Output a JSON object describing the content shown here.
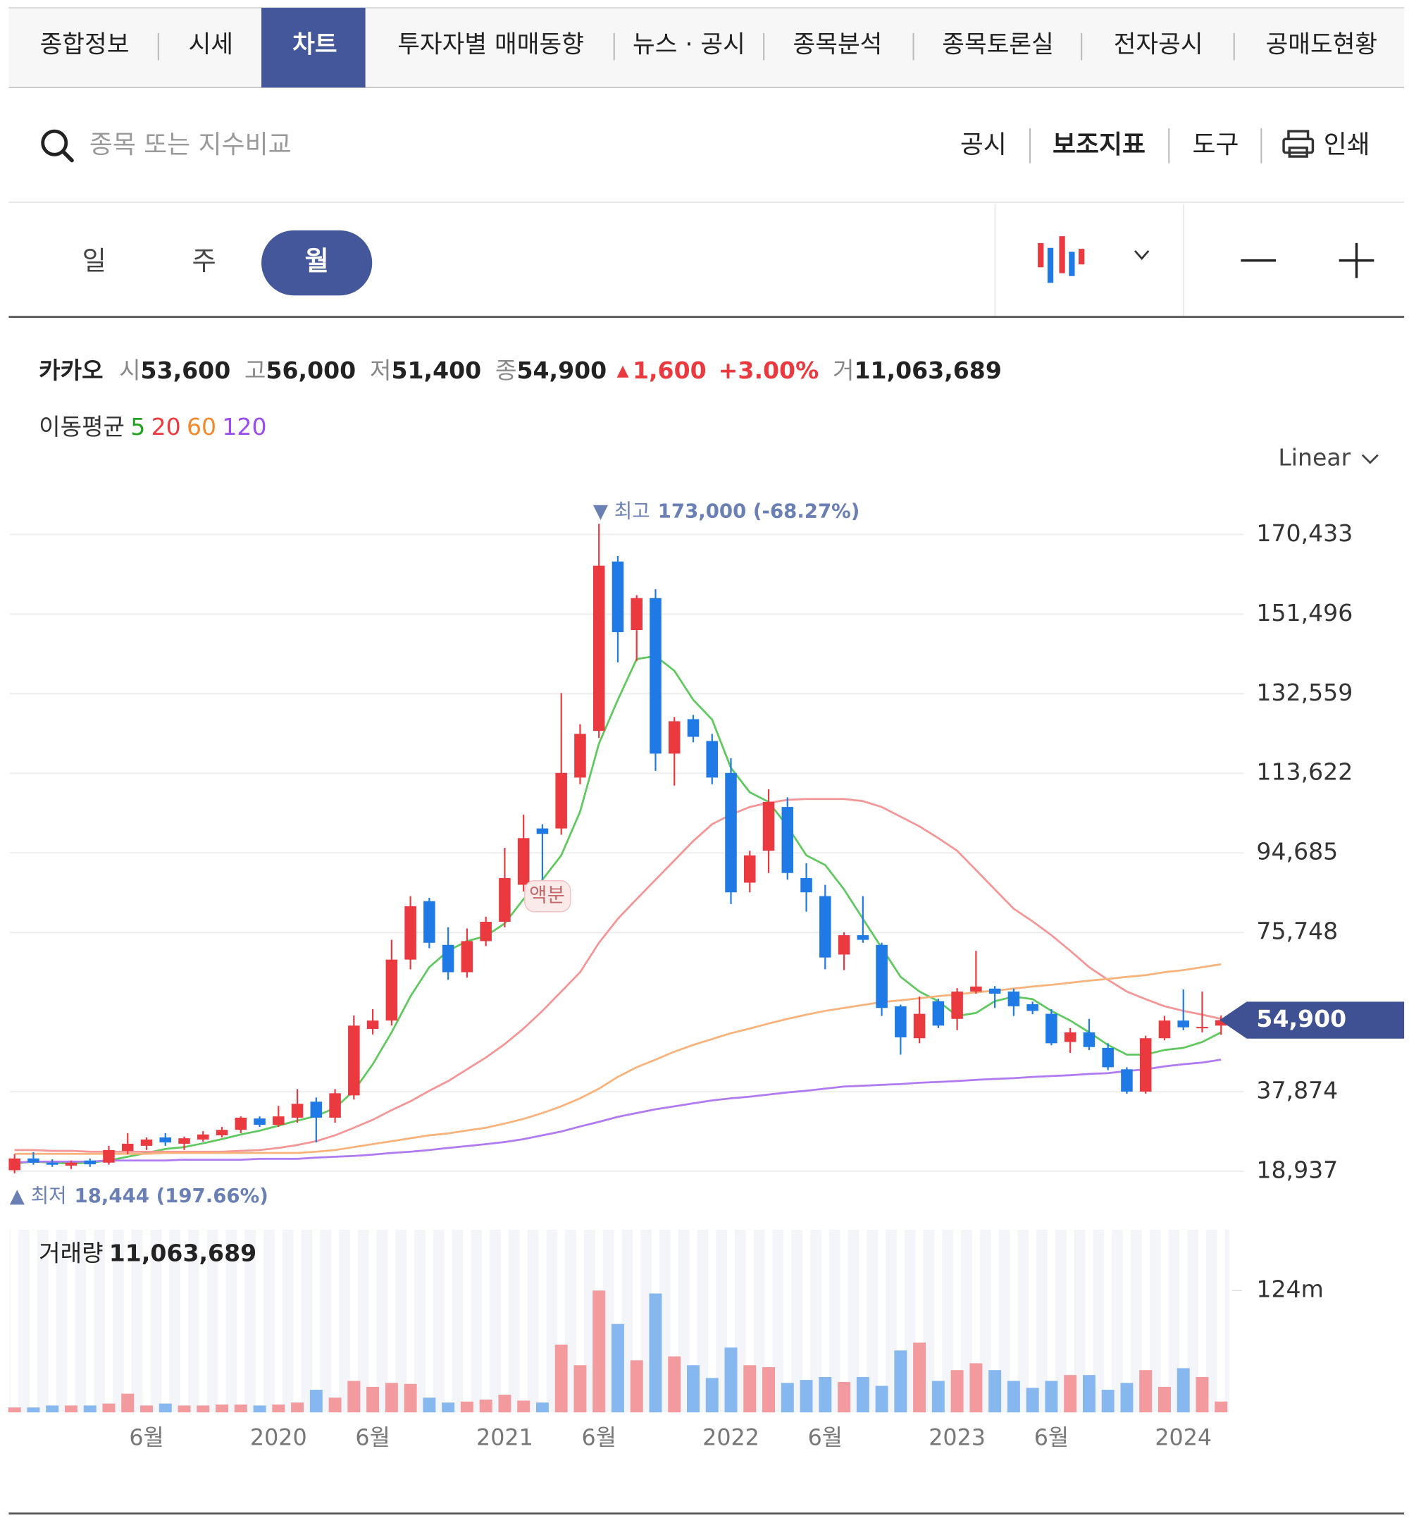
{
  "tabs": [
    "종합정보",
    "시세",
    "차트",
    "투자자별 매매동향",
    "뉴스 · 공시",
    "종목분석",
    "종목토론실",
    "전자공시",
    "공매도현황"
  ],
  "search_placeholder": "종목 또는 지수비교",
  "toolbar": [
    "공시",
    "보조지표",
    "도구",
    "인쇄"
  ],
  "periods": [
    "일",
    "주",
    "월"
  ],
  "quote": {
    "name": "카카오",
    "open_label": "시",
    "open": "53,600",
    "high_label": "고",
    "high": "56,000",
    "low_label": "저",
    "low": "51,400",
    "close_label": "종",
    "close": "54,900",
    "change_arrow": "▲",
    "change": "1,600",
    "change_pct": "+3.00%",
    "volume_label": "거",
    "volume": "11,063,689"
  },
  "scale_mode": "Linear",
  "split_marker": "액분",
  "chart_data": {
    "type": "candlestick",
    "categories": [
      null,
      null,
      null,
      null,
      null,
      null,
      null,
      "6월",
      null,
      null,
      null,
      null,
      null,
      null,
      "2020",
      null,
      null,
      null,
      null,
      "6월",
      null,
      null,
      null,
      null,
      null,
      null,
      "2021",
      null,
      null,
      null,
      null,
      "6월",
      null,
      null,
      null,
      null,
      null,
      null,
      "2022",
      null,
      null,
      null,
      null,
      "6월",
      null,
      null,
      null,
      null,
      null,
      null,
      "2023",
      null,
      null,
      null,
      null,
      "6월",
      null,
      null,
      null,
      null,
      null,
      null,
      "2024",
      null,
      null
    ],
    "open": [
      19200,
      22000,
      21000,
      20300,
      21500,
      21000,
      23800,
      25000,
      27000,
      25500,
      26500,
      27500,
      28800,
      31500,
      30000,
      31700,
      35500,
      31700,
      37000,
      52800,
      54800,
      69300,
      83200,
      72800,
      66300,
      73700,
      78300,
      87100,
      100500,
      100500,
      112600,
      123700,
      164000,
      147700,
      155300,
      118300,
      126500,
      121300,
      113700,
      87600,
      95200,
      105600,
      88700,
      84400,
      70500,
      75100,
      72800,
      58200,
      50600,
      59400,
      55200,
      61700,
      62400,
      61700,
      58700,
      56400,
      49700,
      52000,
      48300,
      43200,
      37900,
      50600,
      54800,
      53000,
      53600
    ],
    "high": [
      23000,
      23500,
      21800,
      21500,
      22000,
      25000,
      28000,
      27000,
      28000,
      27200,
      28500,
      29500,
      32000,
      32000,
      34500,
      38500,
      36500,
      38500,
      56000,
      57500,
      74000,
      84400,
      84000,
      77000,
      76700,
      79500,
      95900,
      103800,
      101500,
      132700,
      125300,
      173000,
      165300,
      156000,
      157400,
      127000,
      127500,
      123000,
      117200,
      95200,
      109800,
      107900,
      92200,
      87100,
      75800,
      84400,
      73300,
      58600,
      60500,
      60000,
      62500,
      71400,
      63000,
      62400,
      59300,
      57500,
      53000,
      55200,
      49400,
      43700,
      51200,
      55900,
      62200,
      61700,
      56000
    ],
    "low": [
      18444,
      20500,
      20000,
      19500,
      20000,
      20500,
      23000,
      24000,
      25000,
      24000,
      26000,
      27000,
      28000,
      29500,
      29500,
      30500,
      25800,
      30500,
      36000,
      51500,
      53600,
      67000,
      72000,
      64500,
      65000,
      72500,
      77000,
      85500,
      88300,
      99000,
      111000,
      122000,
      140000,
      140300,
      114200,
      110700,
      121000,
      111000,
      82500,
      85300,
      89900,
      88300,
      80700,
      67000,
      66800,
      73300,
      55900,
      46700,
      49400,
      53000,
      52500,
      61200,
      57800,
      55900,
      56300,
      48900,
      47100,
      47800,
      43000,
      37400,
      37400,
      50100,
      52500,
      52000,
      51400
    ],
    "close": [
      22000,
      21000,
      20500,
      21000,
      20600,
      24000,
      25500,
      26500,
      25800,
      26800,
      27700,
      28800,
      31700,
      30000,
      32000,
      35000,
      31700,
      37500,
      53600,
      54800,
      69300,
      82000,
      73300,
      66300,
      73700,
      78300,
      88700,
      98200,
      99200,
      113700,
      123000,
      163000,
      147200,
      155300,
      118300,
      126000,
      122300,
      112600,
      85300,
      94100,
      106800,
      89900,
      85300,
      69800,
      75100,
      74000,
      57800,
      50800,
      56400,
      53600,
      61700,
      62900,
      61200,
      58200,
      57100,
      49400,
      52000,
      48500,
      43700,
      37900,
      50600,
      54800,
      53200,
      53300,
      54900
    ],
    "up_color": "#ea3a40",
    "down_color": "#1f7ae6",
    "ma_title": "이동평균",
    "moving_averages": [
      {
        "name": "5",
        "color": "#5fc95f",
        "text_color": "#22a322",
        "values": [
          20800,
          21250,
          21000,
          20800,
          21000,
          21500,
          22400,
          23300,
          24250,
          24700,
          25600,
          26600,
          27700,
          28600,
          29800,
          31000,
          32100,
          34000,
          38100,
          44400,
          52000,
          60550,
          67500,
          71400,
          73700,
          74900,
          77900,
          83700,
          88300,
          94100,
          104500,
          120700,
          131100,
          140800,
          141500,
          138000,
          131100,
          126400,
          114900,
          109100,
          106800,
          101000,
          94100,
          91800,
          86000,
          79000,
          72100,
          65200,
          61700,
          59400,
          55900,
          56600,
          59400,
          60500,
          59900,
          57100,
          54800,
          52000,
          49000,
          46700,
          46700,
          47800,
          48300,
          49700,
          52000
        ]
      },
      {
        "name": "20",
        "color": "#f59595",
        "text_color": "#ea3a40",
        "values": [
          24000,
          24000,
          23800,
          23800,
          23600,
          23600,
          23600,
          23600,
          23600,
          23600,
          23600,
          23600,
          23800,
          24000,
          24500,
          25200,
          26100,
          27500,
          29300,
          31200,
          33500,
          35600,
          38100,
          40400,
          43200,
          46000,
          49200,
          52900,
          57100,
          61700,
          66300,
          73300,
          79000,
          83700,
          88300,
          92900,
          97500,
          101500,
          103800,
          105600,
          106600,
          107300,
          107500,
          107500,
          107500,
          107000,
          105600,
          103300,
          101000,
          98200,
          95200,
          90600,
          86000,
          81400,
          78400,
          75100,
          71400,
          67500,
          64500,
          61700,
          59900,
          58200,
          57100,
          56200,
          55200
        ]
      },
      {
        "name": "60",
        "color": "#f8b27a",
        "text_color": "#f08a2a",
        "values": [
          23100,
          23100,
          23100,
          23100,
          23100,
          23100,
          23100,
          23100,
          23300,
          23300,
          23300,
          23300,
          23300,
          23300,
          23300,
          23300,
          23600,
          24000,
          24700,
          25400,
          26100,
          26800,
          27500,
          27950,
          28650,
          29300,
          30300,
          31400,
          32800,
          34400,
          36300,
          38600,
          41400,
          43700,
          45500,
          47400,
          49000,
          50400,
          51800,
          52900,
          54100,
          55200,
          56200,
          57100,
          57800,
          58500,
          59200,
          59600,
          60100,
          60600,
          61000,
          61500,
          61900,
          62400,
          62900,
          63300,
          63800,
          64300,
          64700,
          65200,
          65600,
          66300,
          66800,
          67500,
          68200
        ]
      },
      {
        "name": "120",
        "color": "#b07af3",
        "text_color": "#9b4cf0",
        "values": [
          21000,
          21250,
          21250,
          21250,
          21250,
          21500,
          21500,
          21500,
          21500,
          21700,
          21700,
          21700,
          21700,
          21900,
          21900,
          21900,
          22200,
          22400,
          22600,
          22900,
          23300,
          23600,
          24000,
          24500,
          24950,
          25400,
          25900,
          26600,
          27500,
          28400,
          29600,
          30700,
          31900,
          32800,
          33700,
          34400,
          35100,
          35800,
          36300,
          36700,
          37200,
          37700,
          38100,
          38600,
          39100,
          39300,
          39500,
          39700,
          40000,
          40200,
          40400,
          40700,
          40900,
          41100,
          41400,
          41600,
          41800,
          42100,
          42300,
          42800,
          43200,
          43900,
          44400,
          44800,
          45500
        ]
      }
    ],
    "ylim": [
      16000,
      178000
    ],
    "yticks": [
      {
        "value": 18937,
        "label": "18,937"
      },
      {
        "value": 37874,
        "label": "37,874"
      },
      {
        "value": 75748,
        "label": "75,748"
      },
      {
        "value": 94685,
        "label": "94,685"
      },
      {
        "value": 113622,
        "label": "113,622"
      },
      {
        "value": 132559,
        "label": "132,559"
      },
      {
        "value": 151496,
        "label": "151,496"
      },
      {
        "value": 170433,
        "label": "170,433"
      }
    ],
    "grid": true,
    "price_marker": {
      "value": 54900,
      "label": "54,900"
    },
    "max_annotation": {
      "label": "▼ 최고",
      "text": "173,000 (-68.27%)"
    },
    "min_annotation": {
      "label": "▲ 최저",
      "text": "18,444 (197.66%)"
    },
    "volume": {
      "title": "거래량",
      "latest_label": "11,063,689",
      "up_color": "#f29a9d",
      "down_color": "#86b7ef",
      "values": [
        5000000,
        5000000,
        7000000,
        7000000,
        7000000,
        9000000,
        19000000,
        7000000,
        9000000,
        7000000,
        7000000,
        8000000,
        8000000,
        7000000,
        8000000,
        10000000,
        23000000,
        15000000,
        32000000,
        26000000,
        30000000,
        29000000,
        15000000,
        10000000,
        11000000,
        13000000,
        18000000,
        12000000,
        10000000,
        69000000,
        48000000,
        124000000,
        90000000,
        53000000,
        121000000,
        57000000,
        48000000,
        35000000,
        66000000,
        48000000,
        46000000,
        30000000,
        33000000,
        36000000,
        31000000,
        36000000,
        27000000,
        63000000,
        71000000,
        32000000,
        43000000,
        50000000,
        43000000,
        32000000,
        25000000,
        32000000,
        38000000,
        38000000,
        23000000,
        30000000,
        43000000,
        26000000,
        45000000,
        36000000,
        11063689
      ],
      "ylim": [
        0,
        186000000
      ],
      "yticks": [
        {
          "value": 124000000,
          "label": "124m"
        }
      ]
    }
  }
}
